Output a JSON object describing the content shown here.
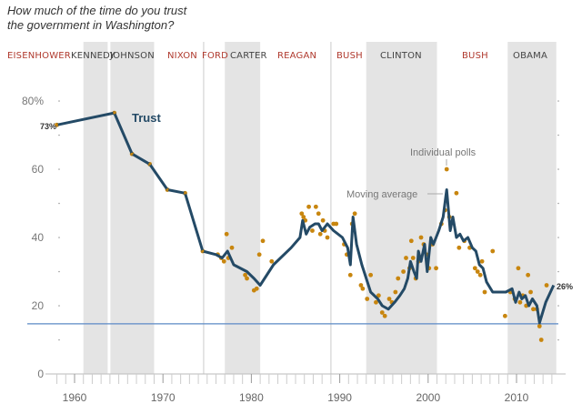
{
  "chart_data": {
    "type": "line",
    "title": "How much of the time do you trust the government in Washington?",
    "title_lines": [
      "How much of the time do you trust",
      "the government in Washington?"
    ],
    "xlabel": "",
    "ylabel": "",
    "xlim": [
      1956.8,
      2014.5
    ],
    "ylim": [
      0,
      80
    ],
    "x_ticks": [
      1960,
      1970,
      1980,
      1990,
      2000,
      2010
    ],
    "x_tick_labels": [
      "1960",
      "1970",
      "1980",
      "1990",
      "2000",
      "2010"
    ],
    "y_ticks": [
      0,
      20,
      40,
      60,
      80
    ],
    "y_tick_labels": [
      "0",
      "20",
      "40",
      "60",
      "80%"
    ],
    "y_minor_ticks": [
      10,
      30,
      50,
      70
    ],
    "reference_line": 14.7,
    "colors": {
      "line": "#244a66",
      "polls": "#c8860f",
      "band": "#e4e4e4",
      "reference": "#5b8ac6",
      "republican": "#b03a2e",
      "democrat": "#444444"
    },
    "presidents": [
      {
        "name": "EISENHOWER",
        "party": "R",
        "start": 1953,
        "end": 1961
      },
      {
        "name": "KENNEDY",
        "party": "D",
        "start": 1961,
        "end": 1963.9
      },
      {
        "name": "JOHNSON",
        "party": "D",
        "start": 1963.9,
        "end": 1969
      },
      {
        "name": "NIXON",
        "party": "R",
        "start": 1969,
        "end": 1974.6
      },
      {
        "name": "FORD",
        "party": "R",
        "start": 1974.6,
        "end": 1977
      },
      {
        "name": "CARTER",
        "party": "D",
        "start": 1977,
        "end": 1981
      },
      {
        "name": "REAGAN",
        "party": "R",
        "start": 1981,
        "end": 1989
      },
      {
        "name": "BUSH",
        "party": "R",
        "start": 1989,
        "end": 1993
      },
      {
        "name": "CLINTON",
        "party": "D",
        "start": 1993,
        "end": 2001
      },
      {
        "name": "BUSH",
        "party": "R",
        "start": 2001,
        "end": 2009
      },
      {
        "name": "OBAMA",
        "party": "D",
        "start": 2009,
        "end": 2014.5
      }
    ],
    "series": [
      {
        "name": "Moving average",
        "label": "Trust",
        "x": [
          1958,
          1964.5,
          1966.5,
          1968.5,
          1970.5,
          1972.5,
          1974.5,
          1976,
          1976.7,
          1977.3,
          1978,
          1979.5,
          1980.3,
          1981,
          1982.5,
          1984.5,
          1985.5,
          1985.8,
          1986.2,
          1986.6,
          1987.2,
          1987.6,
          1988,
          1988.6,
          1989.3,
          1990.3,
          1990.9,
          1991.2,
          1991.5,
          1991.9,
          1992.5,
          1993.5,
          1994.3,
          1994.8,
          1995.5,
          1996.2,
          1996.8,
          1997.3,
          1997.7,
          1998,
          1998.4,
          1998.7,
          1998.9,
          1999.2,
          1999.6,
          1999.9,
          2000.3,
          2000.6,
          2001.2,
          2001.7,
          2002.1,
          2002.5,
          2002.8,
          2003.2,
          2003.6,
          2004,
          2004.5,
          2005,
          2005.4,
          2005.8,
          2006.2,
          2006.6,
          2007.3,
          2008,
          2008.8,
          2009.5,
          2009.9,
          2010.3,
          2010.6,
          2011,
          2011.4,
          2011.8,
          2012.3,
          2012.6,
          2013.3,
          2014.2
        ],
        "y": [
          73,
          76.5,
          64.5,
          61.5,
          54,
          53,
          36,
          35,
          34,
          36,
          32,
          30,
          28,
          26,
          32,
          37,
          40,
          45,
          41,
          43,
          44,
          44,
          42,
          44,
          42,
          40,
          37,
          32,
          46,
          38,
          32,
          24,
          22,
          20,
          19,
          21,
          23,
          25,
          28,
          33,
          30,
          28,
          36,
          33,
          38,
          30,
          40,
          38,
          42,
          46,
          54,
          42,
          46,
          40,
          41,
          39,
          40,
          37,
          36,
          32,
          31,
          27,
          24,
          24,
          24,
          25,
          21,
          24,
          22,
          23,
          20,
          22,
          20,
          15,
          21,
          26
        ]
      },
      {
        "name": "Individual polls",
        "type": "scatter",
        "x": [
          1958,
          1964.5,
          1966.5,
          1968.5,
          1970.5,
          1972.5,
          1974.5,
          1976.2,
          1976.6,
          1976.9,
          1977.2,
          1977.4,
          1977.8,
          1979.3,
          1979.5,
          1980.3,
          1980.6,
          1980.9,
          1981.3,
          1982.3,
          1985.7,
          1985.9,
          1986.1,
          1986.5,
          1986.9,
          1987.3,
          1987.6,
          1987.8,
          1988.1,
          1988.3,
          1988.6,
          1989.3,
          1989.6,
          1990.5,
          1990.8,
          1991.2,
          1991.4,
          1991.7,
          1992.4,
          1992.6,
          1993.1,
          1993.5,
          1994.1,
          1994.4,
          1994.8,
          1995.1,
          1995.6,
          1995.9,
          1996.3,
          1996.6,
          1997.2,
          1997.5,
          1997.9,
          1998.1,
          1998.3,
          1998.6,
          1998.9,
          1999.2,
          1999.5,
          1999.8,
          2000.1,
          2000.5,
          2000.9,
          2001.5,
          2001.9,
          2002.1,
          2002.4,
          2003.2,
          2003.5,
          2004.1,
          2004.7,
          2005.3,
          2005.6,
          2005.9,
          2006.1,
          2006.4,
          2007.3,
          2008.7,
          2009.3,
          2009.8,
          2010.2,
          2010.4,
          2010.7,
          2011.1,
          2011.3,
          2011.6,
          2011.9,
          2012.3,
          2012.6,
          2012.8,
          2013.4
        ],
        "y": [
          73,
          76.5,
          64.5,
          61.5,
          54,
          53,
          36,
          35,
          34,
          33,
          41,
          34,
          37,
          29,
          28,
          24.5,
          25,
          35,
          39,
          33,
          47,
          46,
          45,
          49,
          42,
          49,
          47,
          41,
          45,
          42,
          40,
          44,
          44,
          38,
          35,
          29,
          44,
          47,
          26,
          25,
          22,
          29,
          21,
          23,
          18,
          17,
          22,
          21,
          24,
          28,
          30,
          34,
          31,
          39,
          34,
          28,
          33,
          40,
          38,
          35,
          31,
          38,
          31,
          44,
          48,
          60,
          46,
          53,
          37,
          39,
          37,
          31,
          30,
          29,
          33,
          24,
          36,
          17,
          24,
          22,
          31,
          21,
          23,
          20,
          29,
          24,
          19,
          19,
          14,
          10,
          26
        ]
      }
    ],
    "annotations": [
      {
        "text": "Trust",
        "role": "series-label"
      },
      {
        "text": "73%",
        "role": "start-value"
      },
      {
        "text": "26%",
        "role": "end-value"
      },
      {
        "text": "Individual polls",
        "role": "callout"
      },
      {
        "text": "Moving average",
        "role": "callout"
      }
    ],
    "grid": false,
    "legend": "none"
  }
}
